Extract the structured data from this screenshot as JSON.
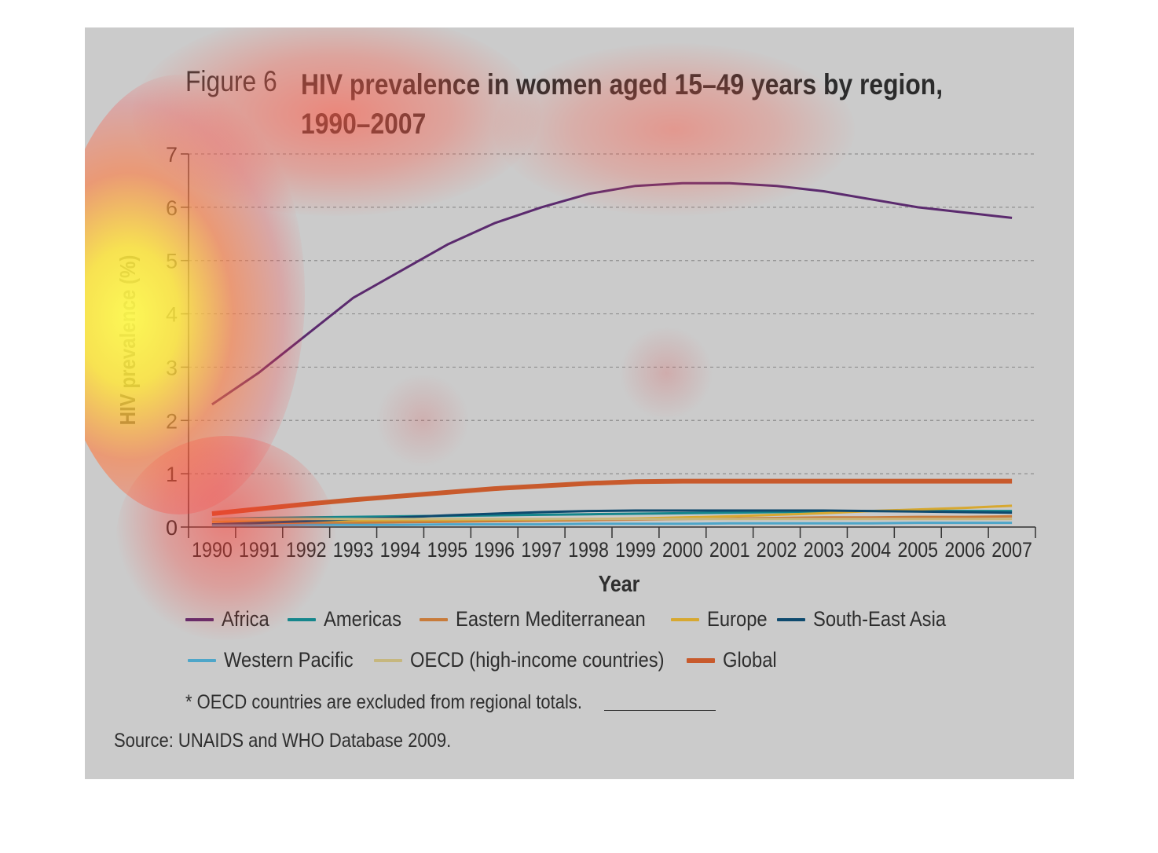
{
  "figure_label": "Figure 6",
  "title": "HIV prevalence in women aged 15–49 years by region, 1990–2007",
  "footnote": "* OECD countries are excluded from regional totals.",
  "source": "Source: UNAIDS and WHO Database 2009.",
  "chart_data": {
    "type": "line",
    "xlabel": "Year",
    "ylabel": "HIV prevalence (%)",
    "x": [
      1990,
      1991,
      1992,
      1993,
      1994,
      1995,
      1996,
      1997,
      1998,
      1999,
      2000,
      2001,
      2002,
      2003,
      2004,
      2005,
      2006,
      2007
    ],
    "ylim": [
      0,
      7
    ],
    "yticks": [
      0,
      1,
      2,
      3,
      4,
      5,
      6,
      7
    ],
    "grid": "horizontal dashed",
    "legend_position": "bottom",
    "series": [
      {
        "name": "Africa",
        "color": "#5b2a6e",
        "width": 3,
        "values": [
          2.3,
          2.9,
          3.6,
          4.3,
          4.8,
          5.3,
          5.7,
          6.0,
          6.25,
          6.4,
          6.45,
          6.45,
          6.4,
          6.3,
          6.15,
          6.0,
          5.9,
          5.8
        ]
      },
      {
        "name": "Americas",
        "color": "#15868c",
        "width": 3,
        "values": [
          0.15,
          0.17,
          0.18,
          0.19,
          0.2,
          0.21,
          0.22,
          0.23,
          0.24,
          0.25,
          0.26,
          0.27,
          0.28,
          0.29,
          0.3,
          0.3,
          0.3,
          0.3
        ]
      },
      {
        "name": "Eastern Mediterranean",
        "color": "#c87b3a",
        "width": 3,
        "values": [
          0.05,
          0.06,
          0.07,
          0.08,
          0.09,
          0.1,
          0.11,
          0.12,
          0.13,
          0.14,
          0.15,
          0.16,
          0.17,
          0.18,
          0.18,
          0.19,
          0.19,
          0.2
        ]
      },
      {
        "name": "Europe",
        "color": "#d7a830",
        "width": 3,
        "values": [
          0.1,
          0.11,
          0.12,
          0.12,
          0.13,
          0.13,
          0.14,
          0.14,
          0.15,
          0.16,
          0.18,
          0.2,
          0.23,
          0.26,
          0.3,
          0.33,
          0.36,
          0.4
        ]
      },
      {
        "name": "South-East Asia",
        "color": "#0e4a6e",
        "width": 3,
        "values": [
          0.05,
          0.08,
          0.11,
          0.15,
          0.18,
          0.22,
          0.25,
          0.28,
          0.3,
          0.31,
          0.31,
          0.31,
          0.31,
          0.31,
          0.3,
          0.29,
          0.28,
          0.27
        ]
      },
      {
        "name": "Western Pacific",
        "color": "#4ea6c9",
        "width": 3,
        "values": [
          0.03,
          0.03,
          0.04,
          0.04,
          0.04,
          0.05,
          0.05,
          0.05,
          0.06,
          0.06,
          0.06,
          0.07,
          0.07,
          0.07,
          0.07,
          0.08,
          0.08,
          0.08
        ]
      },
      {
        "name": "OECD (high-income countries)",
        "color": "#c6b77e",
        "width": 3,
        "values": [
          0.15,
          0.15,
          0.15,
          0.15,
          0.15,
          0.15,
          0.15,
          0.15,
          0.15,
          0.15,
          0.15,
          0.15,
          0.15,
          0.15,
          0.15,
          0.15,
          0.15,
          0.15
        ]
      },
      {
        "name": "Global",
        "color": "#c85a2c",
        "width": 6,
        "values": [
          0.25,
          0.34,
          0.43,
          0.51,
          0.58,
          0.65,
          0.72,
          0.77,
          0.82,
          0.85,
          0.86,
          0.86,
          0.86,
          0.86,
          0.86,
          0.86,
          0.86,
          0.86
        ]
      }
    ]
  }
}
